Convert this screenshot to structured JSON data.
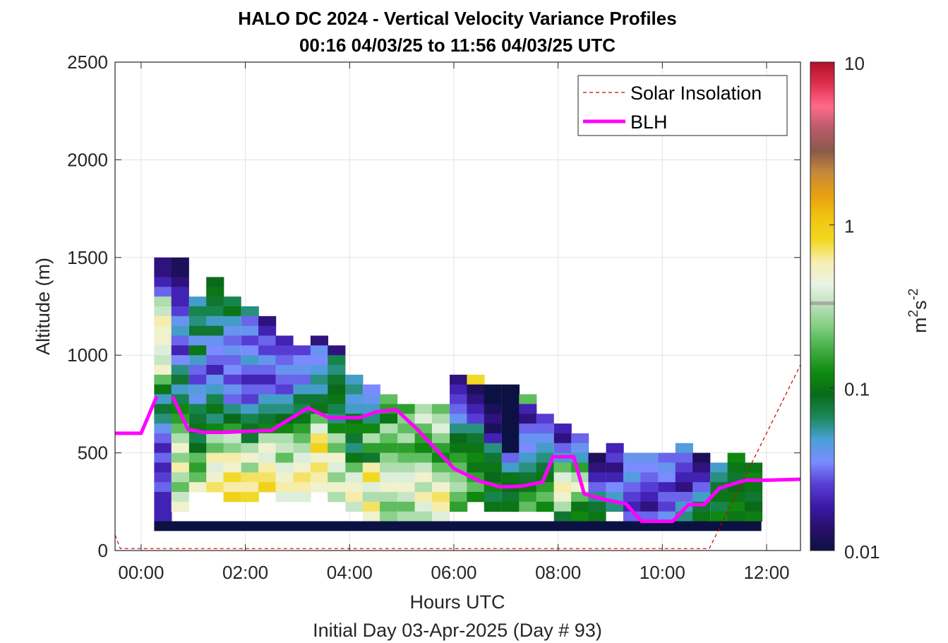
{
  "chart_data": {
    "type": "heatmap",
    "title": "HALO DC 2024 - Vertical Velocity Variance Profiles",
    "subtitle": "00:16 04/03/25 to 11:56 04/03/25  UTC",
    "xlabel": "Hours UTC",
    "xlabel2": "Initial Day 03-Apr-2025 (Day # 93)",
    "ylabel": "Altitude (m)",
    "xlim": [
      -0.5,
      12.65
    ],
    "ylim": [
      0,
      2500
    ],
    "x_ticks": [
      0,
      2,
      4,
      6,
      8,
      10,
      12
    ],
    "x_tick_labels": [
      "00:00",
      "02:00",
      "04:00",
      "06:00",
      "08:00",
      "10:00",
      "12:00"
    ],
    "y_ticks": [
      0,
      500,
      1000,
      1500,
      2000,
      2500
    ],
    "y_tick_labels": [
      "0",
      "500",
      "1000",
      "1500",
      "2000",
      "2500"
    ],
    "grid": true,
    "colorbar": {
      "label_base": "m",
      "label_sup1": "2",
      "label_mid": "s",
      "label_sup2": "-2",
      "scale": "log",
      "range": [
        0.01,
        10
      ],
      "tick_values": [
        0.01,
        0.1,
        1,
        10
      ],
      "tick_labels": [
        "0.01",
        "0.1",
        "1",
        "10"
      ],
      "colors": [
        "#0b1142",
        "#2a0f6b",
        "#3a1aa8",
        "#5a3fd8",
        "#7a8cff",
        "#4aa0d8",
        "#1a8a5a",
        "#0a6a1a",
        "#0f8a0f",
        "#3fab3f",
        "#7ccc7c",
        "#b8e0b8",
        "#eaf4e6",
        "#f6eeb0",
        "#f2d820",
        "#f0c410",
        "#e8a010",
        "#c68a3a",
        "#8a5a48",
        "#b85a6a",
        "#ff6a8a",
        "#e03050",
        "#b0102a"
      ],
      "marker_value": 0.33,
      "marker_color": "#a8a8a8"
    },
    "legend": {
      "placement": "top-right",
      "entries": [
        {
          "label": "Solar Insolation",
          "color": "#cc0000",
          "style": "dashed"
        },
        {
          "label": "BLH",
          "color": "#ff00ff",
          "style": "solid"
        }
      ]
    },
    "grid_cell": {
      "dx": 0.1667,
      "dy": 50
    },
    "heatmap_columns": [
      {
        "x": 0.25,
        "ytop": 1500,
        "profile": [
          0.015,
          0.015,
          0.02,
          0.03,
          0.3,
          0.35,
          0.6,
          0.5,
          0.5,
          0.4,
          0.35,
          0.5,
          0.2,
          0.1,
          0.05,
          0.08,
          0.06,
          0.04,
          0.03,
          0.02,
          0.03,
          0.02,
          0.025,
          0.03,
          0.02,
          0.02,
          0.02,
          0.03
        ]
      },
      {
        "x": 0.58,
        "ytop": 1500,
        "profile": [
          0.012,
          0.012,
          0.015,
          0.02,
          0.02,
          0.025,
          0.04,
          0.05,
          0.03,
          0.02,
          0.035,
          0.06,
          0.08,
          0.05,
          0.07,
          0.12,
          0.15,
          0.2,
          0.3,
          0.5,
          0.25,
          0.6,
          0.3,
          0.2,
          0.35,
          0.5
        ]
      },
      {
        "x": 0.92,
        "ytop": 1300,
        "profile": [
          0.05,
          0.07,
          0.06,
          0.08,
          0.04,
          0.1,
          0.05,
          0.03,
          0.025,
          0.045,
          0.04,
          0.07,
          0.08,
          0.1,
          0.07,
          0.09,
          0.2,
          0.15,
          0.2,
          0.5
        ]
      },
      {
        "x": 1.25,
        "ytop": 1400,
        "profile": [
          0.09,
          0.1,
          0.08,
          0.07,
          0.05,
          0.08,
          0.04,
          0.035,
          0.03,
          0.02,
          0.04,
          0.05,
          0.07,
          0.1,
          0.06,
          0.12,
          0.3,
          0.2,
          0.6,
          0.4,
          0.5,
          0.7
        ]
      },
      {
        "x": 1.58,
        "ytop": 1300,
        "profile": [
          0.07,
          0.1,
          0.05,
          0.04,
          0.03,
          0.04,
          0.03,
          0.035,
          0.025,
          0.04,
          0.03,
          0.06,
          0.09,
          0.15,
          0.35,
          0.25,
          0.6,
          0.5,
          0.8,
          0.6,
          0.9
        ]
      },
      {
        "x": 1.92,
        "ytop": 1250,
        "profile": [
          0.06,
          0.03,
          0.04,
          0.025,
          0.035,
          0.05,
          0.03,
          0.02,
          0.03,
          0.025,
          0.05,
          0.07,
          0.1,
          0.08,
          0.3,
          0.5,
          0.25,
          0.7,
          0.6,
          0.8
        ]
      },
      {
        "x": 2.25,
        "ytop": 1200,
        "profile": [
          0.015,
          0.02,
          0.03,
          0.025,
          0.04,
          0.03,
          0.02,
          0.03,
          0.05,
          0.06,
          0.08,
          0.12,
          0.3,
          0.5,
          0.4,
          0.6,
          0.7,
          0.9
        ]
      },
      {
        "x": 2.58,
        "ytop": 1100,
        "profile": [
          0.02,
          0.025,
          0.03,
          0.04,
          0.03,
          0.025,
          0.05,
          0.06,
          0.09,
          0.12,
          0.3,
          0.35,
          0.2,
          0.4,
          0.5,
          0.6,
          0.4
        ]
      },
      {
        "x": 2.92,
        "ytop": 1050,
        "profile": [
          0.025,
          0.035,
          0.04,
          0.03,
          0.05,
          0.08,
          0.07,
          0.1,
          0.15,
          0.2,
          0.3,
          0.4,
          0.5,
          0.7,
          0.6,
          0.4
        ]
      },
      {
        "x": 3.25,
        "ytop": 1100,
        "profile": [
          0.015,
          0.04,
          0.035,
          0.045,
          0.06,
          0.05,
          0.08,
          0.1,
          0.2,
          0.4,
          0.7,
          0.9,
          0.5,
          0.7,
          0.6,
          0.5
        ]
      },
      {
        "x": 3.58,
        "ytop": 1050,
        "profile": [
          0.015,
          0.07,
          0.06,
          0.08,
          0.09,
          0.1,
          0.07,
          0.06,
          0.12,
          0.3,
          0.2,
          0.5,
          0.4,
          0.25,
          0.5,
          0.3
        ]
      },
      {
        "x": 3.92,
        "ytop": 900,
        "profile": [
          0.05,
          0.06,
          0.045,
          0.05,
          0.1,
          0.12,
          0.08,
          0.06,
          0.1,
          0.2,
          0.4,
          0.5,
          0.6,
          0.35
        ]
      },
      {
        "x": 4.25,
        "ytop": 850,
        "profile": [
          0.035,
          0.04,
          0.05,
          0.06,
          0.12,
          0.3,
          0.15,
          0.08,
          0.6,
          0.8,
          0.4,
          0.3,
          0.7,
          0.5
        ]
      },
      {
        "x": 4.58,
        "ytop": 800,
        "profile": [
          0.2,
          0.15,
          0.1,
          0.3,
          0.2,
          0.15,
          0.25,
          0.3,
          0.4,
          0.5,
          0.3,
          0.2,
          0.25
        ]
      },
      {
        "x": 4.92,
        "ytop": 750,
        "profile": [
          0.15,
          0.25,
          0.2,
          0.3,
          0.15,
          0.2,
          0.3,
          0.4,
          0.5,
          0.35,
          0.2,
          0.3
        ]
      },
      {
        "x": 5.25,
        "ytop": 750,
        "profile": [
          0.3,
          0.4,
          0.2,
          0.15,
          0.12,
          0.2,
          0.35,
          0.5,
          0.3,
          0.6,
          0.4,
          0.3
        ]
      },
      {
        "x": 5.58,
        "ytop": 750,
        "profile": [
          0.2,
          0.3,
          0.4,
          0.25,
          0.15,
          0.12,
          0.2,
          0.3,
          0.5,
          0.7,
          0.6,
          0.4
        ]
      },
      {
        "x": 5.92,
        "ytop": 900,
        "profile": [
          0.015,
          0.02,
          0.025,
          0.03,
          0.04,
          0.06,
          0.09,
          0.1,
          0.15,
          0.2,
          0.25,
          0.3,
          0.2,
          0.15
        ]
      },
      {
        "x": 6.25,
        "ytop": 900,
        "profile": [
          0.8,
          0.012,
          0.015,
          0.02,
          0.025,
          0.06,
          0.08,
          0.1,
          0.12,
          0.1,
          0.15,
          0.2,
          0.12
        ]
      },
      {
        "x": 6.58,
        "ytop": 850,
        "profile": [
          0.01,
          0.01,
          0.012,
          0.015,
          0.012,
          0.02,
          0.06,
          0.08,
          0.1,
          0.09,
          0.12,
          0.07,
          0.1
        ]
      },
      {
        "x": 6.92,
        "ytop": 850,
        "profile": [
          0.01,
          0.01,
          0.01,
          0.01,
          0.01,
          0.01,
          0.01,
          0.03,
          0.05,
          0.1,
          0.09,
          0.08,
          0.1
        ]
      },
      {
        "x": 7.25,
        "ytop": 800,
        "profile": [
          0.2,
          0.02,
          0.015,
          0.03,
          0.04,
          0.035,
          0.05,
          0.06,
          0.08,
          0.1,
          0.15,
          0.2
        ]
      },
      {
        "x": 7.58,
        "ytop": 700,
        "profile": [
          0.025,
          0.03,
          0.04,
          0.05,
          0.06,
          0.08,
          0.1,
          0.15,
          0.2,
          0.12
        ]
      },
      {
        "x": 7.92,
        "ytop": 650,
        "profile": [
          0.02,
          0.015,
          0.03,
          0.05,
          0.2,
          0.4,
          0.6,
          0.5,
          0.3,
          0.08
        ]
      },
      {
        "x": 8.25,
        "ytop": 600,
        "profile": [
          0.03,
          0.04,
          0.05,
          0.15,
          0.3,
          0.5,
          0.2,
          0.1,
          0.12
        ]
      },
      {
        "x": 8.58,
        "ytop": 500,
        "profile": [
          0.012,
          0.015,
          0.02,
          0.03,
          0.06,
          0.08,
          0.1
        ]
      },
      {
        "x": 8.92,
        "ytop": 550,
        "profile": [
          0.02,
          0.025,
          0.015,
          0.02,
          0.035,
          0.05,
          0.06
        ]
      },
      {
        "x": 9.25,
        "ytop": 500,
        "profile": [
          0.04,
          0.035,
          0.045,
          0.03,
          0.025,
          0.02,
          0.03
        ]
      },
      {
        "x": 9.58,
        "ytop": 500,
        "profile": [
          0.04,
          0.035,
          0.03,
          0.025,
          0.02,
          0.015,
          0.03
        ]
      },
      {
        "x": 9.92,
        "ytop": 500,
        "profile": [
          0.03,
          0.04,
          0.035,
          0.02,
          0.03,
          0.025,
          0.04
        ]
      },
      {
        "x": 10.25,
        "ytop": 550,
        "profile": [
          0.045,
          0.03,
          0.025,
          0.02,
          0.015,
          0.03,
          0.05,
          0.06
        ]
      },
      {
        "x": 10.58,
        "ytop": 500,
        "profile": [
          0.012,
          0.015,
          0.02,
          0.03,
          0.05,
          0.08,
          0.1
        ]
      },
      {
        "x": 10.92,
        "ytop": 450,
        "profile": [
          0.05,
          0.06,
          0.08,
          0.1,
          0.07,
          0.12
        ]
      },
      {
        "x": 11.25,
        "ytop": 500,
        "profile": [
          0.12,
          0.1,
          0.08,
          0.09,
          0.1,
          0.12,
          0.1
        ]
      },
      {
        "x": 11.58,
        "ytop": 450,
        "profile": [
          0.1,
          0.12,
          0.1,
          0.08,
          0.09,
          0.11
        ]
      }
    ],
    "bottom_band": {
      "y0": 100,
      "y1": 150,
      "x0": 0.25,
      "x1": 11.9,
      "value": 0.01
    },
    "blh": [
      {
        "x": -0.5,
        "y": 600
      },
      {
        "x": -0.25,
        "y": 600
      },
      {
        "x": 0.0,
        "y": 600
      },
      {
        "x": 0.3,
        "y": 790
      }
    ],
    "blh_2": [
      {
        "x": 0.6,
        "y": 790
      },
      {
        "x": 0.9,
        "y": 620
      },
      {
        "x": 1.2,
        "y": 605
      },
      {
        "x": 1.6,
        "y": 605
      },
      {
        "x": 2.0,
        "y": 610
      },
      {
        "x": 2.5,
        "y": 615
      },
      {
        "x": 3.2,
        "y": 730
      },
      {
        "x": 3.6,
        "y": 680
      },
      {
        "x": 4.2,
        "y": 680
      },
      {
        "x": 4.5,
        "y": 710
      },
      {
        "x": 4.9,
        "y": 720
      },
      {
        "x": 5.3,
        "y": 620
      },
      {
        "x": 6.0,
        "y": 420
      },
      {
        "x": 6.5,
        "y": 355
      },
      {
        "x": 6.9,
        "y": 325
      },
      {
        "x": 7.3,
        "y": 330
      },
      {
        "x": 7.7,
        "y": 350
      },
      {
        "x": 7.9,
        "y": 480
      },
      {
        "x": 8.3,
        "y": 480
      },
      {
        "x": 8.5,
        "y": 290
      },
      {
        "x": 8.9,
        "y": 260
      },
      {
        "x": 9.3,
        "y": 240
      },
      {
        "x": 9.6,
        "y": 150
      },
      {
        "x": 10.2,
        "y": 150
      },
      {
        "x": 10.5,
        "y": 235
      },
      {
        "x": 10.8,
        "y": 235
      },
      {
        "x": 11.1,
        "y": 320
      },
      {
        "x": 11.6,
        "y": 360
      },
      {
        "x": 12.0,
        "y": 360
      },
      {
        "x": 12.65,
        "y": 365
      }
    ],
    "solar_insolation": [
      {
        "x": -0.5,
        "y": 80
      },
      {
        "x": -0.4,
        "y": 10
      },
      {
        "x": 10.9,
        "y": 10
      },
      {
        "x": 12.65,
        "y": 950
      }
    ]
  }
}
